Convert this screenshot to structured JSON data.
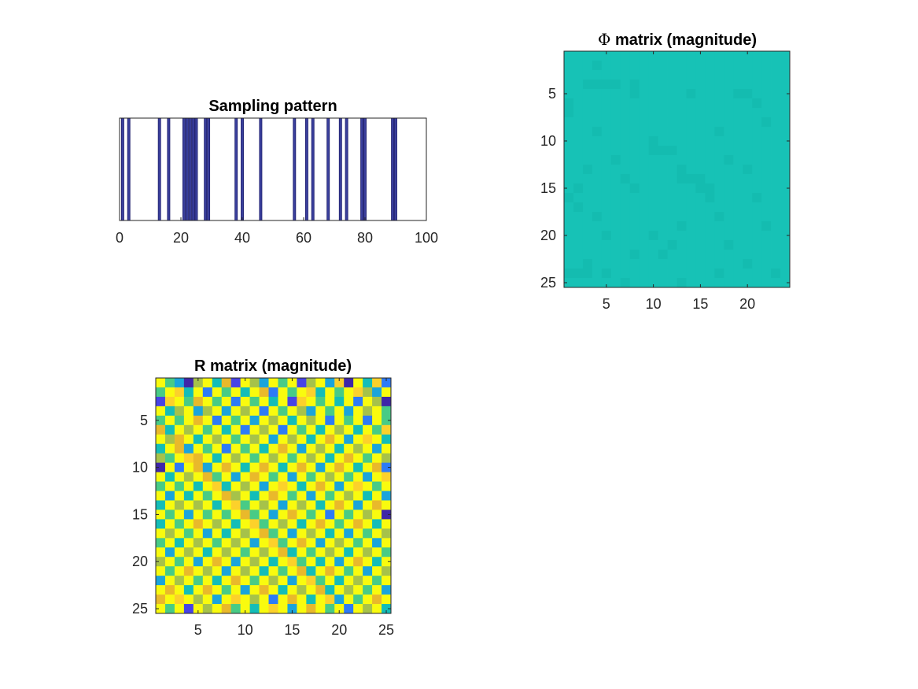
{
  "colors": {
    "background": "#ffffff",
    "axes": "#262626",
    "bar_fill": "#3a3f9c",
    "bar_edge": "#1f1f6e",
    "parula": [
      "#3e26a8",
      "#4743e6",
      "#2d7bf6",
      "#1aa4db",
      "#13bdb8",
      "#48cb86",
      "#a6c24a",
      "#e9b92b",
      "#fcd12b",
      "#f9fb0e"
    ]
  },
  "chart_data": [
    {
      "type": "bar",
      "title": "Sampling pattern",
      "xlabel": "",
      "ylabel": "",
      "xlim": [
        0,
        100
      ],
      "ylim": [
        0,
        1
      ],
      "xticks": [
        0,
        20,
        40,
        60,
        80,
        100
      ],
      "yticks": [],
      "grid": false,
      "sampled_indices": [
        1,
        3,
        13,
        16,
        21,
        22,
        23,
        24,
        25,
        28,
        29,
        38,
        40,
        46,
        57,
        61,
        63,
        68,
        72,
        74,
        79,
        80,
        89,
        90
      ]
    },
    {
      "type": "heatmap",
      "title": "Φ matrix (magnitude)",
      "title_prefix": "Φ",
      "title_text": " matrix (magnitude)",
      "xlim": [
        0.5,
        24.5
      ],
      "ylim": [
        0.5,
        25.5
      ],
      "xticks": [
        5,
        10,
        15,
        20
      ],
      "yticks": [
        5,
        10,
        15,
        20,
        25
      ],
      "rows": 25,
      "cols": 24,
      "base_level": 0.5,
      "shade_cells": [
        [
          2,
          4
        ],
        [
          4,
          3
        ],
        [
          4,
          4
        ],
        [
          4,
          5
        ],
        [
          4,
          6
        ],
        [
          4,
          8
        ],
        [
          5,
          8
        ],
        [
          5,
          14
        ],
        [
          5,
          19
        ],
        [
          5,
          20
        ],
        [
          6,
          1
        ],
        [
          6,
          21
        ],
        [
          7,
          1
        ],
        [
          8,
          22
        ],
        [
          9,
          4
        ],
        [
          9,
          17
        ],
        [
          10,
          10
        ],
        [
          11,
          10
        ],
        [
          11,
          11
        ],
        [
          11,
          12
        ],
        [
          12,
          6
        ],
        [
          12,
          18
        ],
        [
          13,
          3
        ],
        [
          13,
          13
        ],
        [
          13,
          20
        ],
        [
          14,
          7
        ],
        [
          14,
          13
        ],
        [
          14,
          14
        ],
        [
          14,
          15
        ],
        [
          15,
          2
        ],
        [
          15,
          8
        ],
        [
          15,
          15
        ],
        [
          15,
          16
        ],
        [
          16,
          1
        ],
        [
          16,
          16
        ],
        [
          16,
          21
        ],
        [
          17,
          2
        ],
        [
          18,
          4
        ],
        [
          18,
          17
        ],
        [
          19,
          13
        ],
        [
          19,
          22
        ],
        [
          20,
          5
        ],
        [
          20,
          10
        ],
        [
          21,
          12
        ],
        [
          21,
          18
        ],
        [
          22,
          8
        ],
        [
          22,
          11
        ],
        [
          23,
          3
        ],
        [
          23,
          20
        ],
        [
          24,
          1
        ],
        [
          24,
          2
        ],
        [
          24,
          3
        ],
        [
          24,
          5
        ],
        [
          24,
          17
        ],
        [
          24,
          23
        ],
        [
          25,
          7
        ],
        [
          25,
          13
        ]
      ]
    },
    {
      "type": "heatmap",
      "title": "R matrix (magnitude)",
      "xlim": [
        0.5,
        25.5
      ],
      "ylim": [
        0.5,
        25.5
      ],
      "xticks": [
        5,
        10,
        15,
        20,
        25
      ],
      "yticks": [
        5,
        10,
        15,
        20,
        25
      ],
      "rows": 25,
      "cols": 25,
      "values": [
        [
          0.95,
          0.55,
          0.3,
          0.05,
          0.7,
          0.95,
          0.4,
          0.8,
          0.15,
          0.95,
          0.65,
          0.35,
          0.95,
          0.55,
          0.95,
          0.1,
          0.65,
          0.95,
          0.3,
          0.85,
          0.05,
          0.95,
          0.45,
          0.85,
          0.2
        ],
        [
          0.6,
          0.95,
          0.85,
          0.4,
          0.95,
          0.2,
          0.95,
          0.6,
          0.95,
          0.45,
          0.95,
          0.8,
          0.25,
          0.95,
          0.5,
          0.95,
          0.85,
          0.4,
          0.95,
          0.6,
          0.95,
          0.9,
          0.65,
          0.35,
          0.95
        ],
        [
          0.1,
          0.85,
          0.95,
          0.6,
          0.8,
          0.95,
          0.55,
          0.95,
          0.2,
          0.95,
          0.6,
          0.95,
          0.45,
          0.95,
          0.15,
          0.85,
          0.95,
          0.6,
          0.95,
          0.45,
          0.95,
          0.2,
          0.95,
          0.65,
          0.05
        ],
        [
          0.95,
          0.45,
          0.7,
          0.95,
          0.3,
          0.65,
          0.95,
          0.35,
          0.95,
          0.7,
          0.95,
          0.2,
          0.95,
          0.55,
          0.95,
          0.65,
          0.3,
          0.95,
          0.55,
          0.95,
          0.35,
          0.95,
          0.7,
          0.95,
          0.5
        ],
        [
          0.55,
          0.95,
          0.5,
          0.95,
          0.75,
          0.95,
          0.2,
          0.95,
          0.6,
          0.95,
          0.35,
          0.95,
          0.7,
          0.95,
          0.4,
          0.95,
          0.7,
          0.95,
          0.25,
          0.95,
          0.6,
          0.95,
          0.25,
          0.95,
          0.55
        ],
        [
          0.8,
          0.4,
          0.95,
          0.65,
          0.95,
          0.55,
          0.95,
          0.45,
          0.95,
          0.25,
          0.95,
          0.65,
          0.95,
          0.2,
          0.95,
          0.55,
          0.95,
          0.4,
          0.95,
          0.7,
          0.95,
          0.45,
          0.95,
          0.6,
          0.85
        ],
        [
          0.95,
          0.65,
          0.8,
          0.95,
          0.45,
          0.95,
          0.7,
          0.95,
          0.55,
          0.95,
          0.7,
          0.95,
          0.35,
          0.95,
          0.65,
          0.95,
          0.45,
          0.95,
          0.75,
          0.95,
          0.3,
          0.95,
          0.85,
          0.95,
          0.4
        ],
        [
          0.4,
          0.95,
          0.75,
          0.3,
          0.95,
          0.6,
          0.95,
          0.25,
          0.95,
          0.6,
          0.95,
          0.4,
          0.95,
          0.75,
          0.95,
          0.3,
          0.95,
          0.65,
          0.95,
          0.4,
          0.95,
          0.65,
          0.95,
          0.3,
          0.95
        ],
        [
          0.7,
          0.55,
          0.95,
          0.85,
          0.75,
          0.95,
          0.45,
          0.95,
          0.7,
          0.95,
          0.55,
          0.95,
          0.65,
          0.95,
          0.5,
          0.95,
          0.7,
          0.95,
          0.45,
          0.95,
          0.75,
          0.95,
          0.55,
          0.95,
          0.65
        ],
        [
          0.05,
          0.95,
          0.25,
          0.95,
          0.8,
          0.3,
          0.95,
          0.75,
          0.95,
          0.45,
          0.95,
          0.8,
          0.95,
          0.4,
          0.95,
          0.8,
          0.95,
          0.35,
          0.95,
          0.8,
          0.95,
          0.4,
          0.95,
          0.8,
          0.25
        ],
        [
          0.95,
          0.45,
          0.95,
          0.7,
          0.95,
          0.8,
          0.55,
          0.95,
          0.35,
          0.95,
          0.75,
          0.95,
          0.55,
          0.95,
          0.3,
          0.95,
          0.6,
          0.95,
          0.7,
          0.95,
          0.55,
          0.95,
          0.35,
          0.95,
          0.9
        ],
        [
          0.55,
          0.95,
          0.6,
          0.95,
          0.4,
          0.95,
          0.85,
          0.45,
          0.95,
          0.7,
          0.95,
          0.35,
          0.95,
          0.85,
          0.95,
          0.45,
          0.95,
          0.8,
          0.95,
          0.35,
          0.95,
          0.85,
          0.95,
          0.5,
          0.95
        ],
        [
          0.95,
          0.3,
          0.95,
          0.45,
          0.95,
          0.6,
          0.95,
          0.8,
          0.65,
          0.95,
          0.4,
          0.95,
          0.75,
          0.95,
          0.55,
          0.95,
          0.3,
          0.95,
          0.55,
          0.95,
          0.7,
          0.95,
          0.45,
          0.95,
          0.35
        ],
        [
          0.45,
          0.95,
          0.7,
          0.95,
          0.65,
          0.95,
          0.4,
          0.95,
          0.85,
          0.5,
          0.95,
          0.65,
          0.95,
          0.3,
          0.95,
          0.7,
          0.95,
          0.45,
          0.95,
          0.8,
          0.95,
          0.35,
          0.95,
          0.75,
          0.95
        ],
        [
          0.95,
          0.6,
          0.95,
          0.35,
          0.95,
          0.5,
          0.95,
          0.6,
          0.95,
          0.8,
          0.55,
          0.95,
          0.35,
          0.95,
          0.75,
          0.95,
          0.55,
          0.95,
          0.2,
          0.95,
          0.55,
          0.95,
          0.65,
          0.95,
          0.05
        ],
        [
          0.4,
          0.95,
          0.55,
          0.95,
          0.8,
          0.95,
          0.7,
          0.95,
          0.45,
          0.95,
          0.85,
          0.6,
          0.95,
          0.7,
          0.95,
          0.4,
          0.95,
          0.75,
          0.95,
          0.6,
          0.95,
          0.8,
          0.95,
          0.4,
          0.95
        ],
        [
          0.95,
          0.7,
          0.95,
          0.5,
          0.95,
          0.35,
          0.95,
          0.4,
          0.95,
          0.65,
          0.95,
          0.8,
          0.5,
          0.95,
          0.35,
          0.95,
          0.65,
          0.95,
          0.45,
          0.95,
          0.35,
          0.95,
          0.55,
          0.95,
          0.7
        ],
        [
          0.6,
          0.95,
          0.4,
          0.95,
          0.65,
          0.95,
          0.55,
          0.95,
          0.7,
          0.95,
          0.35,
          0.95,
          0.85,
          0.55,
          0.95,
          0.75,
          0.95,
          0.35,
          0.95,
          0.7,
          0.95,
          0.6,
          0.95,
          0.35,
          0.95
        ],
        [
          0.95,
          0.35,
          0.95,
          0.7,
          0.95,
          0.45,
          0.95,
          0.65,
          0.95,
          0.5,
          0.95,
          0.7,
          0.95,
          0.8,
          0.45,
          0.95,
          0.5,
          0.95,
          0.65,
          0.95,
          0.45,
          0.95,
          0.7,
          0.95,
          0.55
        ],
        [
          0.7,
          0.95,
          0.55,
          0.95,
          0.3,
          0.95,
          0.8,
          0.95,
          0.35,
          0.95,
          0.65,
          0.95,
          0.4,
          0.95,
          0.85,
          0.6,
          0.95,
          0.45,
          0.95,
          0.35,
          0.95,
          0.8,
          0.95,
          0.45,
          0.95
        ],
        [
          0.95,
          0.5,
          0.95,
          0.8,
          0.95,
          0.65,
          0.95,
          0.3,
          0.95,
          0.7,
          0.95,
          0.45,
          0.95,
          0.55,
          0.95,
          0.8,
          0.4,
          0.95,
          0.75,
          0.95,
          0.55,
          0.95,
          0.35,
          0.95,
          0.7
        ],
        [
          0.3,
          0.95,
          0.7,
          0.95,
          0.55,
          0.95,
          0.45,
          0.95,
          0.75,
          0.95,
          0.55,
          0.95,
          0.7,
          0.95,
          0.35,
          0.95,
          0.85,
          0.55,
          0.95,
          0.45,
          0.95,
          0.7,
          0.95,
          0.6,
          0.95
        ],
        [
          0.95,
          0.75,
          0.95,
          0.4,
          0.95,
          0.8,
          0.95,
          0.6,
          0.95,
          0.35,
          0.95,
          0.8,
          0.95,
          0.45,
          0.95,
          0.65,
          0.95,
          0.8,
          0.4,
          0.95,
          0.7,
          0.95,
          0.5,
          0.95,
          0.35
        ],
        [
          0.8,
          0.95,
          0.85,
          0.95,
          0.7,
          0.95,
          0.35,
          0.95,
          0.85,
          0.95,
          0.65,
          0.95,
          0.25,
          0.95,
          0.8,
          0.95,
          0.4,
          0.95,
          0.85,
          0.3,
          0.95,
          0.55,
          0.95,
          0.8,
          0.95
        ],
        [
          0.95,
          0.6,
          0.95,
          0.1,
          0.95,
          0.7,
          0.95,
          0.8,
          0.55,
          0.95,
          0.45,
          0.95,
          0.85,
          0.95,
          0.35,
          0.95,
          0.75,
          0.95,
          0.6,
          0.95,
          0.2,
          0.95,
          0.65,
          0.95,
          0.45
        ]
      ]
    }
  ]
}
